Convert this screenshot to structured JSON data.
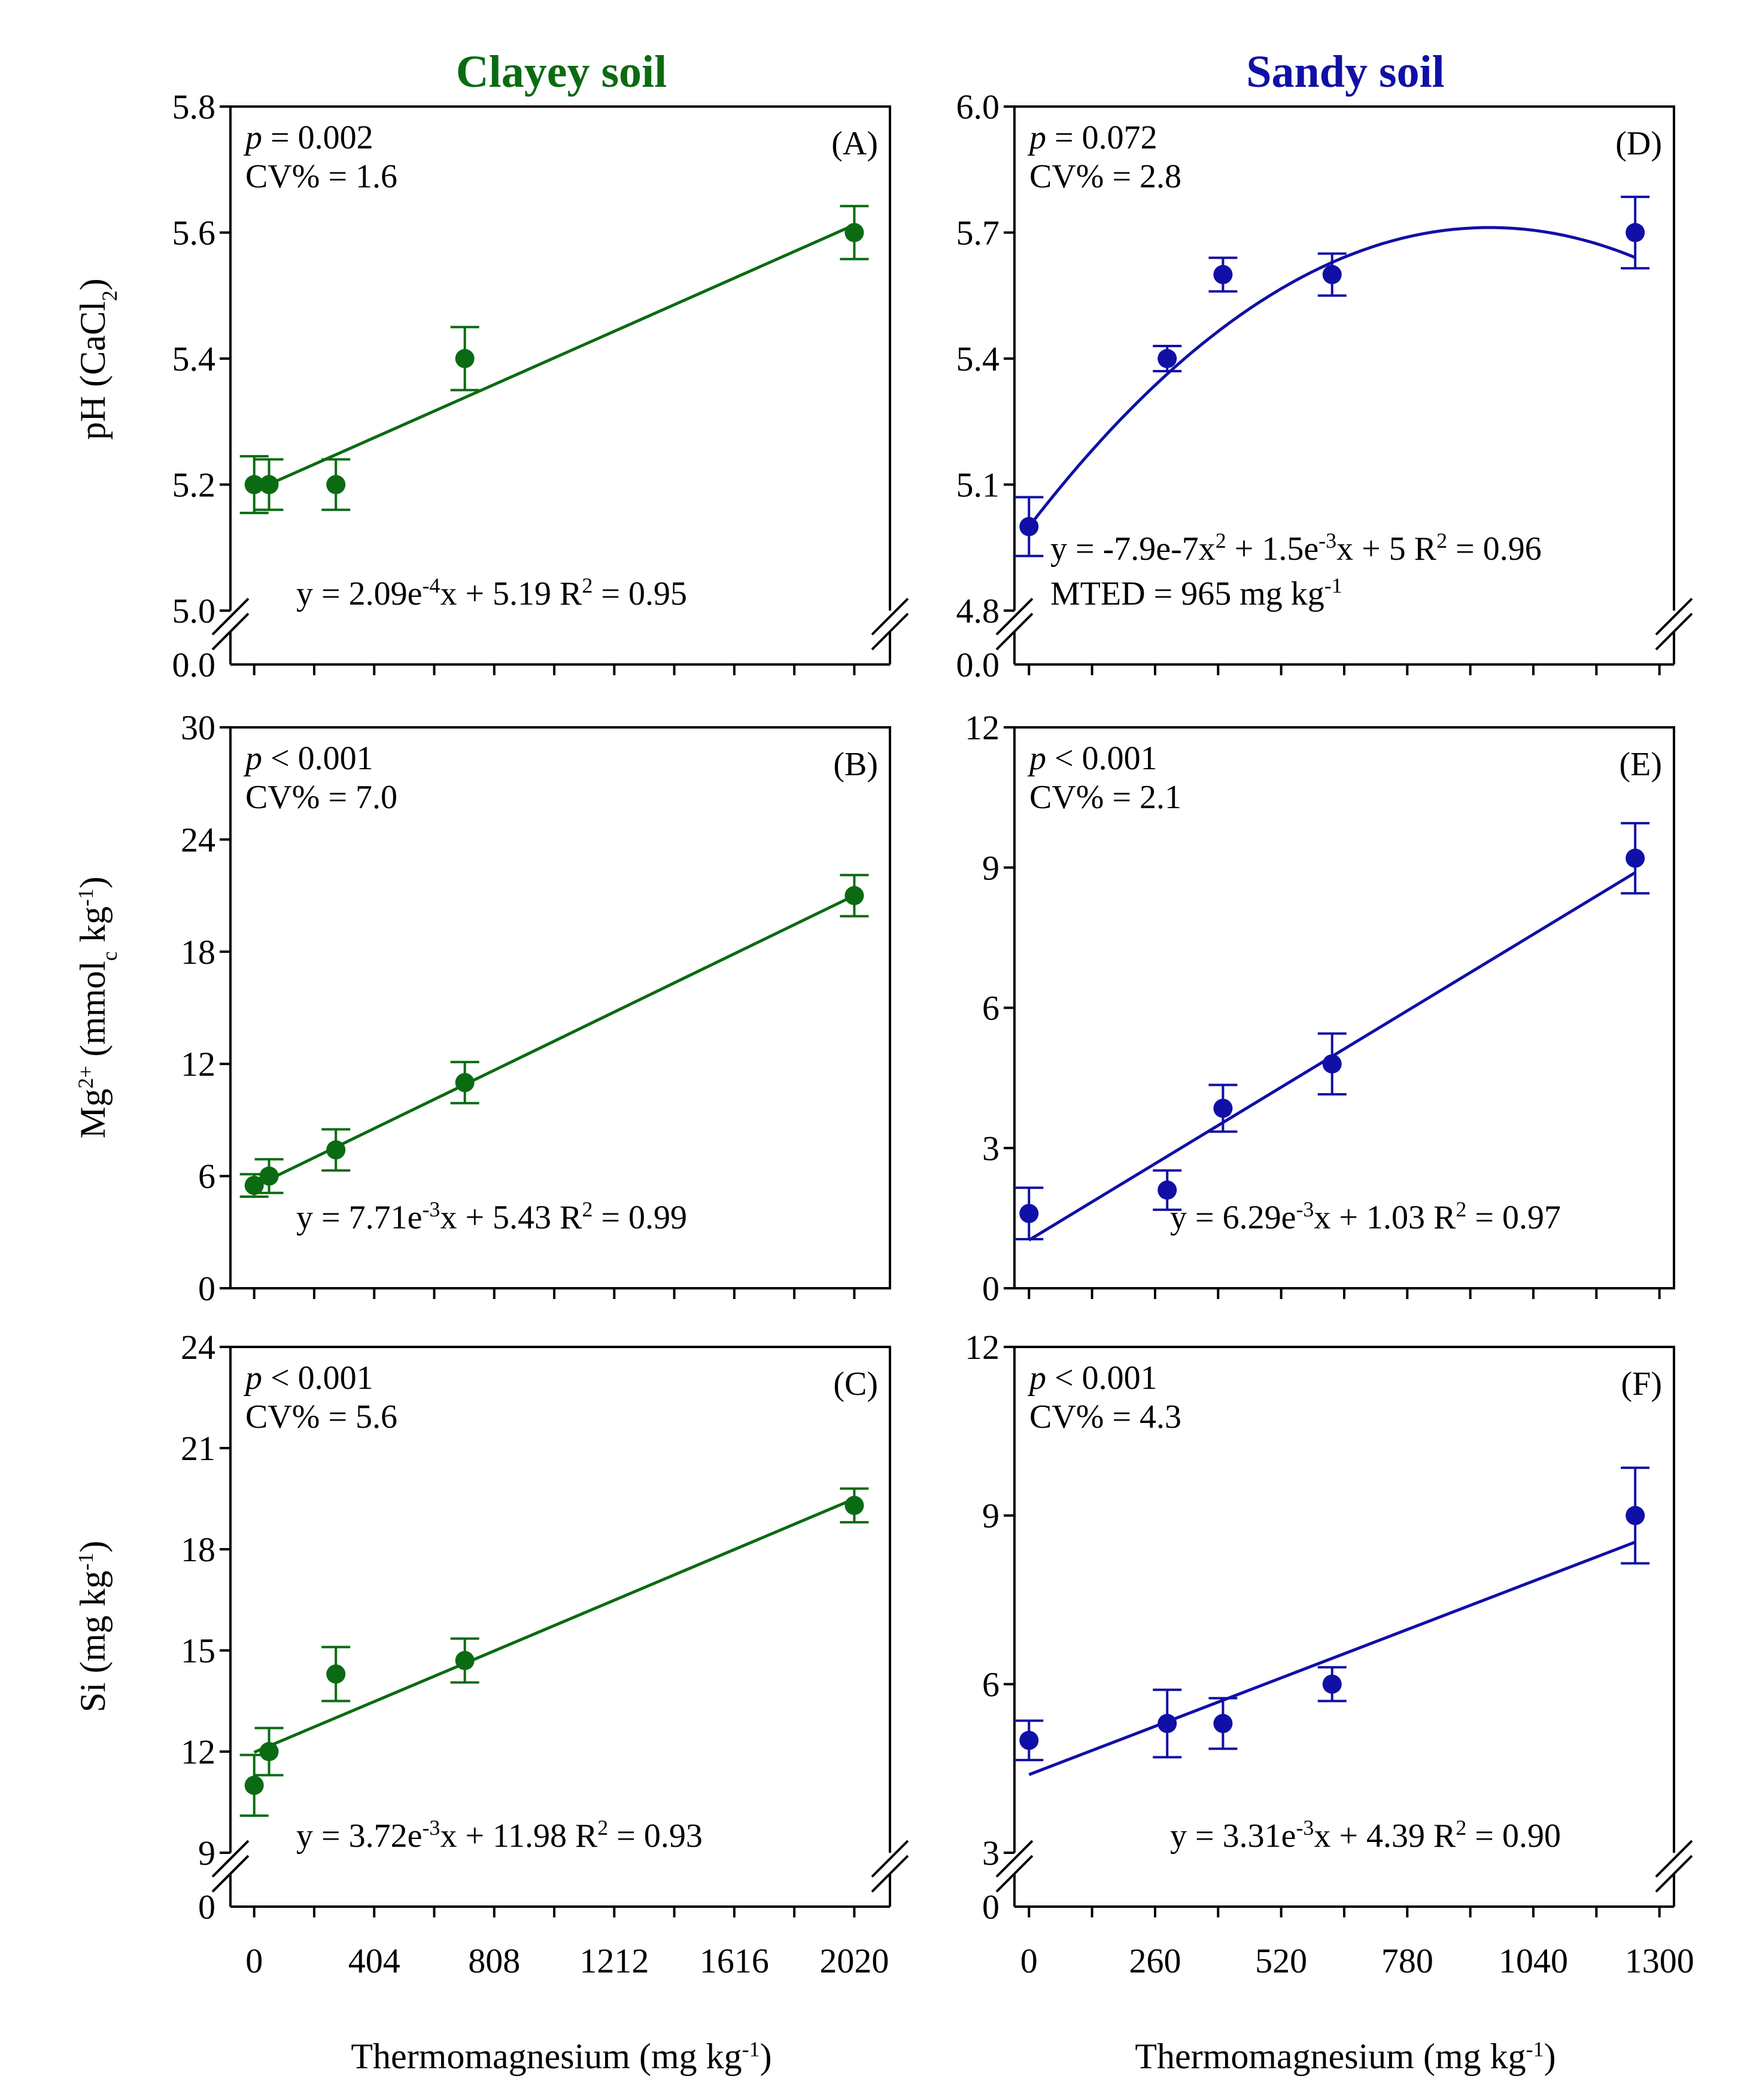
{
  "columns": [
    {
      "title": "Clayey soil",
      "color": "#0b6b12"
    },
    {
      "title": "Sandy soil",
      "color": "#1010a6"
    }
  ],
  "x_axis": {
    "label_main": "Thermomagnesium (mg kg",
    "label_sup": "-1",
    "label_close": ")"
  },
  "y_axis_labels": [
    {
      "prefix": "pH (CaCl",
      "sub": "2",
      "suffix": ")"
    },
    {
      "prefix": "Mg",
      "sup1": "2+",
      "mid": " (mmol",
      "sub": "c",
      "mid2": " kg",
      "sup2": "-1",
      "suffix": ")"
    },
    {
      "prefix": "Si (mg kg",
      "sup": "-1",
      "suffix": ")"
    }
  ],
  "chart_data": [
    {
      "panel": "(A)",
      "type": "scatter",
      "fit": "linear",
      "p_label": "p",
      "p_text": " = 0.002",
      "cv_text": "CV% = 1.6",
      "x": [
        0,
        50,
        275,
        709,
        2020
      ],
      "y": [
        5.2,
        5.2,
        5.2,
        5.4,
        5.6
      ],
      "err": [
        0.045,
        0.04,
        0.04,
        0.05,
        0.042
      ],
      "fit_coef": {
        "slope": 0.000209,
        "intercept": 5.19
      },
      "eq_parts": [
        "y = 2.09e",
        "-4",
        "x + 5.19    R",
        "2",
        " = 0.95"
      ],
      "xlim": [
        -80,
        2140
      ],
      "xticks": [
        0,
        404,
        808,
        1212,
        1616,
        2020
      ],
      "ylim": [
        5.0,
        5.8
      ],
      "yticks": [
        "5.0",
        "5.2",
        "5.4",
        "5.6",
        "5.8"
      ],
      "broken_axis": true,
      "ybase_label": "0.0"
    },
    {
      "panel": "(B)",
      "type": "scatter",
      "fit": "linear",
      "p_label": "p",
      "p_text": " < 0.001",
      "cv_text": "CV% = 7.0",
      "x": [
        0,
        50,
        275,
        709,
        2020
      ],
      "y": [
        5.5,
        6.0,
        7.4,
        11.0,
        21.0
      ],
      "err": [
        0.6,
        0.9,
        1.1,
        1.1,
        1.1
      ],
      "fit_coef": {
        "slope": 0.00771,
        "intercept": 5.43
      },
      "eq_parts": [
        "y = 7.71e",
        "-3",
        "x + 5.43    R",
        "2",
        " = 0.99"
      ],
      "xlim": [
        -80,
        2140
      ],
      "xticks": [
        0,
        404,
        808,
        1212,
        1616,
        2020
      ],
      "ylim": [
        0,
        30
      ],
      "yticks": [
        "0",
        "6",
        "12",
        "18",
        "24",
        "30"
      ],
      "broken_axis": false
    },
    {
      "panel": "(C)",
      "type": "scatter",
      "fit": "linear",
      "p_label": "p",
      "p_text": " < 0.001",
      "cv_text": "CV% = 5.6",
      "x": [
        0,
        50,
        275,
        709,
        2020
      ],
      "y": [
        11.0,
        12.0,
        14.3,
        14.7,
        19.3
      ],
      "err": [
        0.9,
        0.7,
        0.8,
        0.65,
        0.5
      ],
      "fit_coef": {
        "slope": 0.00372,
        "intercept": 11.98
      },
      "eq_parts": [
        "y = 3.72e",
        "-3",
        "x + 11.98    R",
        "2",
        " = 0.93"
      ],
      "xlim": [
        -80,
        2140
      ],
      "xticks": [
        0,
        404,
        808,
        1212,
        1616,
        2020
      ],
      "ylim": [
        9,
        24
      ],
      "yticks": [
        "9",
        "12",
        "15",
        "18",
        "21",
        "24"
      ],
      "broken_axis": true,
      "ybase_label": "0"
    },
    {
      "panel": "(D)",
      "type": "scatter",
      "fit": "quadratic",
      "p_label": "p",
      "p_text": " = 0.072",
      "cv_text": "CV% = 2.8",
      "x": [
        0,
        285,
        400,
        625,
        1250
      ],
      "y": [
        5.0,
        5.4,
        5.6,
        5.6,
        5.7
      ],
      "err": [
        0.07,
        0.03,
        0.04,
        0.05,
        0.085
      ],
      "fit_coef": {
        "a": -7.9e-07,
        "b": 0.0015,
        "c": 5.0
      },
      "eq_parts": [
        "y = -7.9e-7x",
        "2",
        " + 1.5e",
        "-3",
        "x + 5    R",
        "2",
        " = 0.96"
      ],
      "mted_parts": [
        "MTED = 965 mg kg",
        "-1"
      ],
      "xlim": [
        -30,
        1330
      ],
      "xticks": [
        0,
        260,
        520,
        780,
        1040,
        1300
      ],
      "ylim": [
        4.8,
        6.0
      ],
      "yticks": [
        "4.8",
        "5.1",
        "5.4",
        "5.7",
        "6.0"
      ],
      "broken_axis": true,
      "ybase_label": "0.0"
    },
    {
      "panel": "(E)",
      "type": "scatter",
      "fit": "linear",
      "p_label": "p",
      "p_text": " < 0.001",
      "cv_text": "CV% = 2.1",
      "x": [
        0,
        285,
        400,
        625,
        1250
      ],
      "y": [
        1.6,
        2.1,
        3.85,
        4.8,
        9.2
      ],
      "err": [
        0.55,
        0.42,
        0.5,
        0.65,
        0.75
      ],
      "fit_coef": {
        "slope": 0.00629,
        "intercept": 1.03
      },
      "eq_parts": [
        "y = 6.29e",
        "-3",
        "x + 1.03    R",
        "2",
        " = 0.97"
      ],
      "xlim": [
        -30,
        1330
      ],
      "xticks": [
        0,
        260,
        520,
        780,
        1040,
        1300
      ],
      "ylim": [
        0,
        12
      ],
      "yticks": [
        "0",
        "3",
        "6",
        "9",
        "12"
      ],
      "broken_axis": false
    },
    {
      "panel": "(F)",
      "type": "scatter",
      "fit": "linear",
      "p_label": "p",
      "p_text": " < 0.001",
      "cv_text": "CV% = 4.3",
      "x": [
        0,
        285,
        400,
        625,
        1250
      ],
      "y": [
        5.0,
        5.3,
        5.3,
        6.0,
        9.0
      ],
      "err": [
        0.35,
        0.6,
        0.45,
        0.3,
        0.85
      ],
      "fit_coef": {
        "slope": 0.00331,
        "intercept": 4.39
      },
      "eq_parts": [
        "y = 3.31e",
        "-3",
        "x + 4.39    R",
        "2",
        " = 0.90"
      ],
      "xlim": [
        -30,
        1330
      ],
      "xticks": [
        0,
        260,
        520,
        780,
        1040,
        1300
      ],
      "ylim": [
        3,
        12
      ],
      "yticks": [
        "3",
        "6",
        "9",
        "12"
      ],
      "broken_axis": true,
      "ybase_label": "0"
    }
  ]
}
